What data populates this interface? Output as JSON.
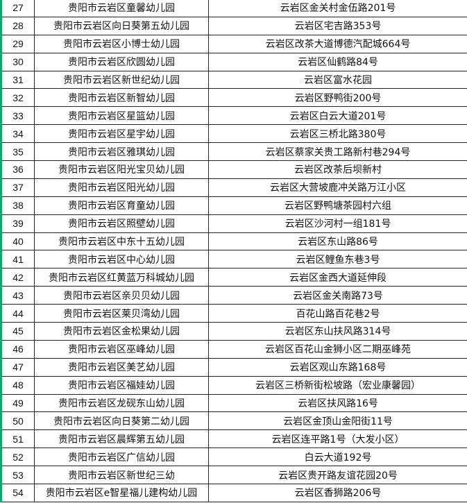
{
  "table": {
    "rows": [
      {
        "no": "27",
        "name": "贵阳市云岩区童馨幼儿园",
        "address": "云岩区金关村金伍路201号"
      },
      {
        "no": "28",
        "name": "贵阳市云岩区向日葵第五幼儿园",
        "address": "云岩区宅吉路353号"
      },
      {
        "no": "29",
        "name": "贵阳市云岩区小博士幼儿园",
        "address": "云岩区改茶大道博德汽配城664号"
      },
      {
        "no": "30",
        "name": "贵阳市云岩区欣圆幼儿园",
        "address": "云岩区仙鹤路84号"
      },
      {
        "no": "31",
        "name": "贵阳市云岩区新世纪幼儿园",
        "address": "云岩区富水花园"
      },
      {
        "no": "32",
        "name": "贵阳市云岩区新智幼儿园",
        "address": "云岩区野鸭街200号"
      },
      {
        "no": "33",
        "name": "贵阳市云岩区星篮幼儿园",
        "address": "云岩区白云大道201号"
      },
      {
        "no": "34",
        "name": "贵阳市云岩区星宇幼儿园",
        "address": "云岩区三桥北路380号"
      },
      {
        "no": "35",
        "name": "贵阳市云岩区雅琪幼儿园",
        "address": "云岩区蔡家关贵工路新村巷294号"
      },
      {
        "no": "36",
        "name": "贵阳市云岩区阳光宝贝幼儿园",
        "address": "云岩区改茶后坝新村"
      },
      {
        "no": "37",
        "name": "贵阳市云岩区阳光幼儿园",
        "address": "云岩区大营坡鹿冲关路万江小区"
      },
      {
        "no": "38",
        "name": "贵阳市云岩区育童幼儿园",
        "address": "云岩区野鸭塘茶园村六组"
      },
      {
        "no": "39",
        "name": "贵阳市云岩区照壁幼儿园",
        "address": "云岩区沙河村一组181号"
      },
      {
        "no": "40",
        "name": "贵阳市云岩区中东十五幼儿园",
        "address": "云岩区东山路86号"
      },
      {
        "no": "41",
        "name": "贵阳市云岩区中心幼儿园",
        "address": "云岩区鲤鱼东巷3号"
      },
      {
        "no": "42",
        "name": "贵阳市云岩区红黄蓝万科城幼儿园",
        "address": "云岩区金西大道延伸段"
      },
      {
        "no": "43",
        "name": "贵阳市云岩区亲贝贝幼儿园",
        "address": "云岩区金关南路73号"
      },
      {
        "no": "44",
        "name": "贵阳市云岩区莱贝湾幼儿园",
        "address": "百花山路百花巷2号"
      },
      {
        "no": "45",
        "name": "贵阳市云岩区金松果幼儿园",
        "address": "云岩区东山扶风路314号"
      },
      {
        "no": "46",
        "name": "贵阳市云岩区巫峰幼儿园",
        "address": "云岩区百花山金狮小区二期巫峰苑"
      },
      {
        "no": "47",
        "name": "贵阳市云岩区美艺幼儿园",
        "address": "云岩区观山东路168号"
      },
      {
        "no": "48",
        "name": "贵阳市云岩区福娃幼儿园",
        "address": "云岩区三桥新街松坡路（宏业康馨园）"
      },
      {
        "no": "49",
        "name": "贵阳市云岩区龙砚东山幼儿园",
        "address": "云岩区扶风路16号"
      },
      {
        "no": "50",
        "name": "贵阳市云岩区向日葵第二幼儿园",
        "address": "云岩区金顶山金阳街11号"
      },
      {
        "no": "51",
        "name": "贵阳市云岩区晨辉第五幼儿园",
        "address": "云岩区连平路1号（大发小区）"
      },
      {
        "no": "52",
        "name": "贵阳市云岩区广信幼儿园",
        "address": "白云大道192号"
      },
      {
        "no": "53",
        "name": "贵阳市云岩区新世纪三幼",
        "address": "云岩区贵开路友谊花园20号"
      },
      {
        "no": "54",
        "name": "贵阳市云岩区e智星福儿建构幼儿园",
        "address": "云岩区香狮路206号"
      }
    ]
  },
  "colors": {
    "left_border": "#1f9e6e",
    "grid": "#222222"
  }
}
